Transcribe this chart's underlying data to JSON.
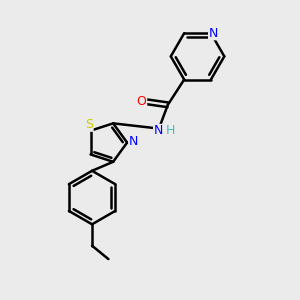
{
  "background_color": "#ebebeb",
  "bond_color": "#000000",
  "bond_width": 1.8,
  "atom_colors": {
    "N": "#0000ff",
    "O": "#ff0000",
    "S": "#cccc00",
    "C": "#000000",
    "H": "#40c0c0"
  },
  "font_size": 9,
  "fig_size": [
    3.0,
    3.0
  ],
  "dpi": 100,
  "xlim": [
    0,
    10
  ],
  "ylim": [
    0,
    10
  ]
}
